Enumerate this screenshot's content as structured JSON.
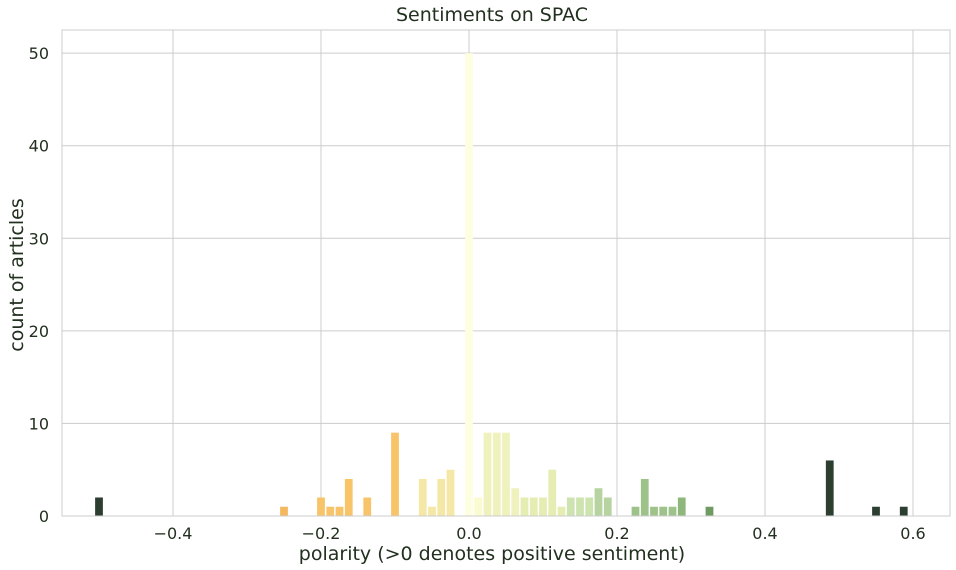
{
  "chart_data": {
    "type": "bar",
    "title": "Sentiments on SPAC",
    "xlabel": "polarity (>0 denotes positive sentiment)",
    "ylabel": "count of articles",
    "xlim": [
      -0.55,
      0.65
    ],
    "ylim": [
      0,
      52.5
    ],
    "bin_width": 0.0125,
    "xticks": [
      -0.4,
      -0.2,
      0.0,
      0.2,
      0.4,
      0.6
    ],
    "xtick_labels": [
      "−0.4",
      "−0.2",
      "0.0",
      "0.2",
      "0.4",
      "0.6"
    ],
    "yticks": [
      0,
      10,
      20,
      30,
      40,
      50
    ],
    "ytick_labels": [
      "0",
      "10",
      "20",
      "30",
      "40",
      "50"
    ],
    "grid": true,
    "bars": [
      {
        "x": -0.5,
        "value": 2,
        "color": "#2c3e2f"
      },
      {
        "x": -0.25,
        "value": 1,
        "color": "#f4b860"
      },
      {
        "x": -0.2,
        "value": 2,
        "color": "#f8c46a"
      },
      {
        "x": -0.1875,
        "value": 1,
        "color": "#f8c46a"
      },
      {
        "x": -0.175,
        "value": 1,
        "color": "#f8c46a"
      },
      {
        "x": -0.1625,
        "value": 4,
        "color": "#f8c46a"
      },
      {
        "x": -0.1375,
        "value": 2,
        "color": "#f8c46a"
      },
      {
        "x": -0.1,
        "value": 9,
        "color": "#f8c46a"
      },
      {
        "x": -0.0625,
        "value": 4,
        "color": "#f5e7a6"
      },
      {
        "x": -0.05,
        "value": 1,
        "color": "#f5e7a6"
      },
      {
        "x": -0.0375,
        "value": 4,
        "color": "#f5e7a6"
      },
      {
        "x": -0.025,
        "value": 5,
        "color": "#f5e7a6"
      },
      {
        "x": 0.0,
        "value": 50,
        "color": "#fefee0"
      },
      {
        "x": 0.0125,
        "value": 2,
        "color": "#fbfbd2"
      },
      {
        "x": 0.025,
        "value": 9,
        "color": "#eff2bc"
      },
      {
        "x": 0.0375,
        "value": 9,
        "color": "#eff2bc"
      },
      {
        "x": 0.05,
        "value": 9,
        "color": "#eff2bc"
      },
      {
        "x": 0.0625,
        "value": 3,
        "color": "#eff2bc"
      },
      {
        "x": 0.075,
        "value": 2,
        "color": "#e6edb3"
      },
      {
        "x": 0.0875,
        "value": 2,
        "color": "#e6edb3"
      },
      {
        "x": 0.1,
        "value": 2,
        "color": "#e6edb3"
      },
      {
        "x": 0.1125,
        "value": 5,
        "color": "#e6edb3"
      },
      {
        "x": 0.125,
        "value": 1,
        "color": "#e6edb3"
      },
      {
        "x": 0.1375,
        "value": 2,
        "color": "#cde4b0"
      },
      {
        "x": 0.15,
        "value": 2,
        "color": "#cde4b0"
      },
      {
        "x": 0.1625,
        "value": 2,
        "color": "#cde4b0"
      },
      {
        "x": 0.175,
        "value": 3,
        "color": "#b7d39f"
      },
      {
        "x": 0.1875,
        "value": 2,
        "color": "#b7d39f"
      },
      {
        "x": 0.225,
        "value": 1,
        "color": "#9dc28a"
      },
      {
        "x": 0.2375,
        "value": 4,
        "color": "#9dc28a"
      },
      {
        "x": 0.25,
        "value": 1,
        "color": "#9dc28a"
      },
      {
        "x": 0.2625,
        "value": 1,
        "color": "#9dc28a"
      },
      {
        "x": 0.275,
        "value": 1,
        "color": "#9dc28a"
      },
      {
        "x": 0.2875,
        "value": 2,
        "color": "#8fb77c"
      },
      {
        "x": 0.325,
        "value": 1,
        "color": "#6f9a62"
      },
      {
        "x": 0.4875,
        "value": 6,
        "color": "#2c3e2f"
      },
      {
        "x": 0.55,
        "value": 1,
        "color": "#2c3e2f"
      },
      {
        "x": 0.5875,
        "value": 1,
        "color": "#2c3e2f"
      }
    ]
  }
}
